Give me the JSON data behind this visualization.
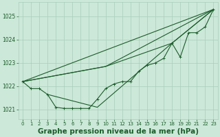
{
  "bg_color": "#cce8d8",
  "grid_color": "#aaccbb",
  "line_color": "#1a5c2a",
  "xlabel": "Graphe pression niveau de la mer (hPa)",
  "xlabel_fontsize": 7.5,
  "yticks": [
    1021,
    1022,
    1023,
    1024,
    1025
  ],
  "xticks": [
    0,
    1,
    2,
    3,
    4,
    5,
    6,
    7,
    8,
    9,
    10,
    11,
    12,
    13,
    14,
    15,
    16,
    17,
    18,
    19,
    20,
    21,
    22,
    23
  ],
  "xlim": [
    -0.5,
    23.5
  ],
  "ylim": [
    1020.6,
    1025.6
  ],
  "line1_x": [
    0,
    1,
    2,
    3,
    4,
    5,
    6,
    7,
    8,
    9,
    10,
    11,
    12,
    13,
    14,
    15,
    16,
    17,
    18,
    19,
    20,
    21,
    22,
    23
  ],
  "line1_y": [
    1022.2,
    1021.9,
    1021.9,
    1021.65,
    1021.1,
    1021.05,
    1021.05,
    1021.05,
    1021.05,
    1021.45,
    1021.9,
    1022.1,
    1022.2,
    1022.2,
    1022.65,
    1022.9,
    1023.0,
    1023.2,
    1023.85,
    1023.25,
    1024.3,
    1024.3,
    1024.55,
    1025.3
  ],
  "line2_x": [
    0,
    23
  ],
  "line2_y": [
    1022.2,
    1025.3
  ],
  "line3_x": [
    0,
    10,
    23
  ],
  "line3_y": [
    1022.2,
    1022.85,
    1025.3
  ],
  "line4_x": [
    0,
    10,
    18,
    23
  ],
  "line4_y": [
    1022.2,
    1022.85,
    1023.85,
    1025.3
  ],
  "line5_x": [
    3,
    9,
    18,
    23
  ],
  "line5_y": [
    1021.65,
    1021.1,
    1023.85,
    1025.3
  ]
}
